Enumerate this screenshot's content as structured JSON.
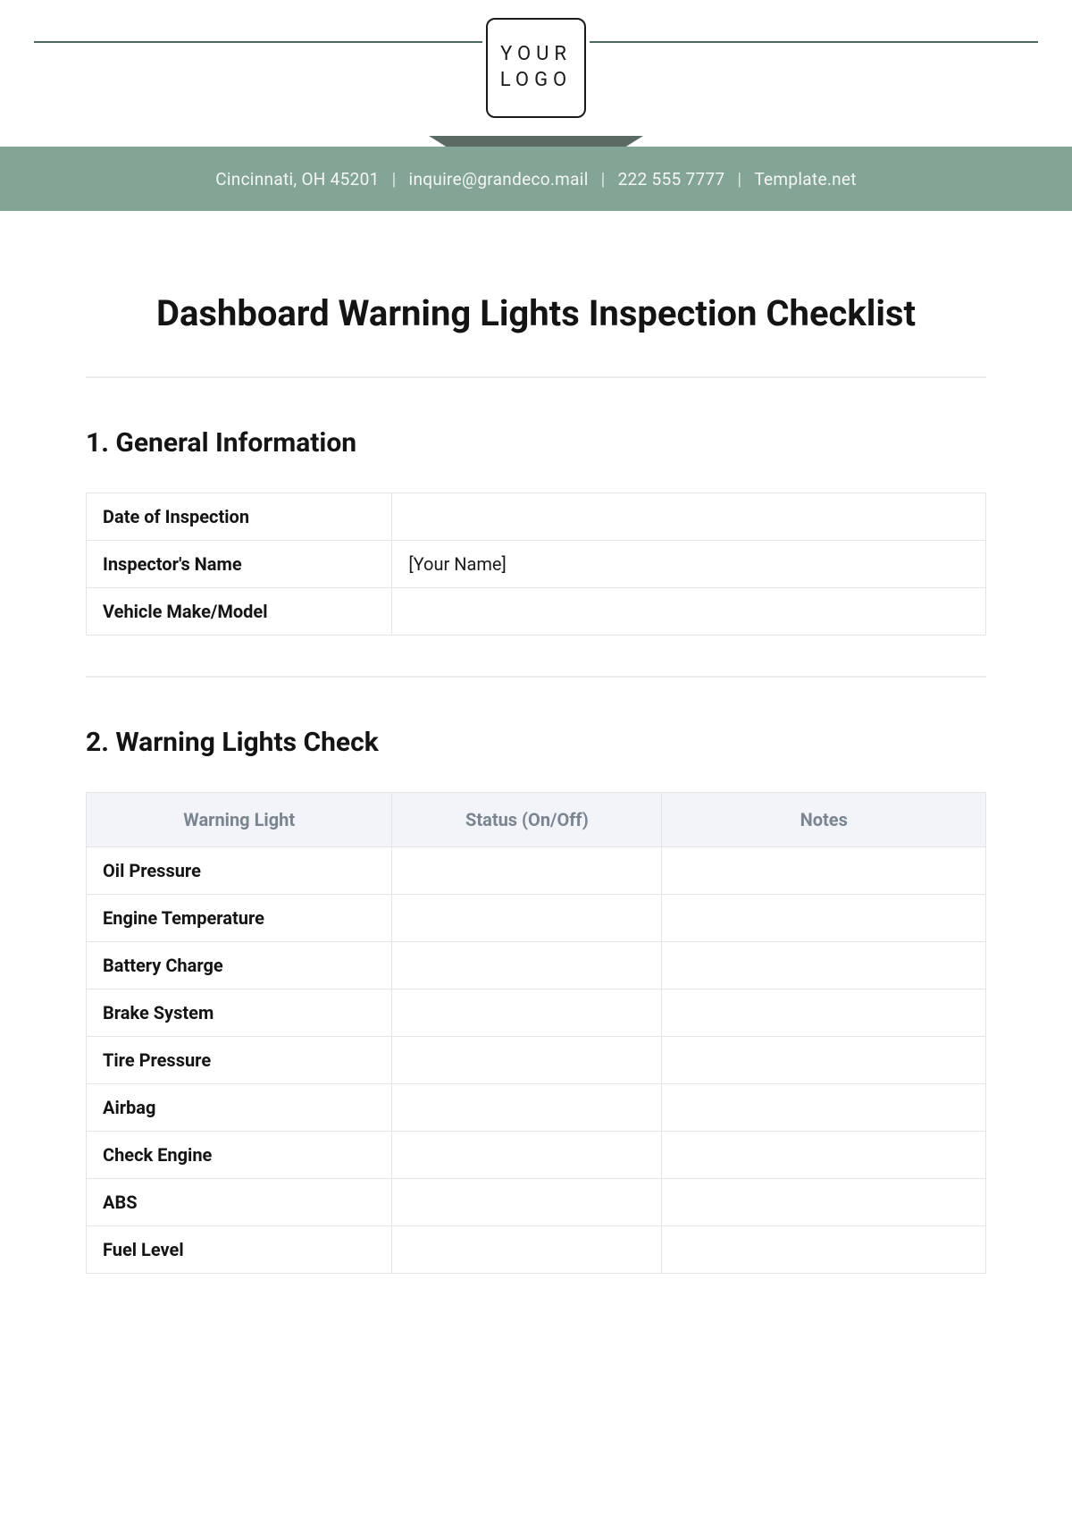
{
  "header": {
    "logo_line1": "YOUR",
    "logo_line2": "LOGO",
    "banner": {
      "address": "Cincinnati, OH 45201",
      "email": "inquire@grandeco.mail",
      "phone": "222 555 7777",
      "site": "Template.net"
    },
    "colors": {
      "banner_bg": "#84a596",
      "banner_tab": "#5b6b64",
      "rule": "#4a6860"
    }
  },
  "title": "Dashboard Warning Lights Inspection Checklist",
  "section1": {
    "heading": "1. General Information",
    "rows": [
      {
        "label": "Date of Inspection",
        "value": ""
      },
      {
        "label": "Inspector's Name",
        "value": "[Your Name]"
      },
      {
        "label": "Vehicle Make/Model",
        "value": ""
      }
    ]
  },
  "section2": {
    "heading": "2. Warning Lights Check",
    "columns": [
      "Warning Light",
      "Status (On/Off)",
      "Notes"
    ],
    "rows": [
      {
        "light": "Oil Pressure",
        "status": "",
        "notes": ""
      },
      {
        "light": "Engine Temperature",
        "status": "",
        "notes": ""
      },
      {
        "light": "Battery Charge",
        "status": "",
        "notes": ""
      },
      {
        "light": "Brake System",
        "status": "",
        "notes": ""
      },
      {
        "light": "Tire Pressure",
        "status": "",
        "notes": ""
      },
      {
        "light": "Airbag",
        "status": "",
        "notes": ""
      },
      {
        "light": "Check Engine",
        "status": "",
        "notes": ""
      },
      {
        "light": "ABS",
        "status": "",
        "notes": ""
      },
      {
        "light": "Fuel Level",
        "status": "",
        "notes": ""
      }
    ]
  }
}
